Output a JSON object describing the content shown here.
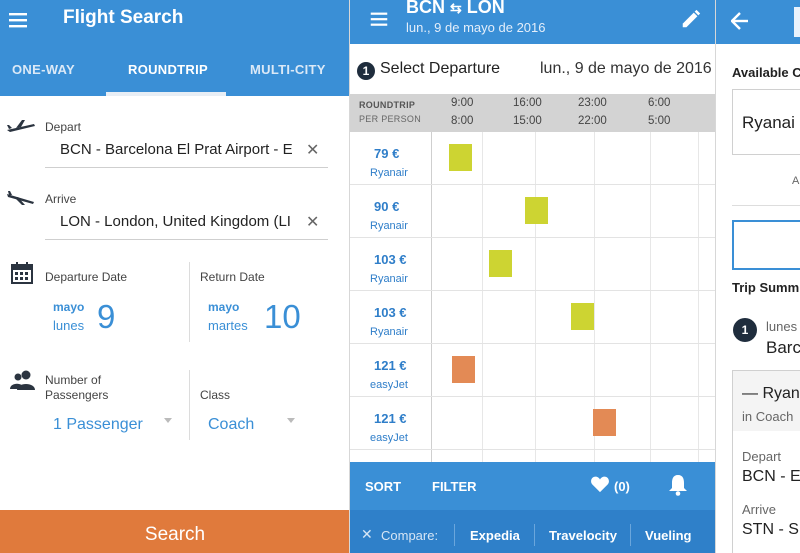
{
  "search": {
    "title": "Flight Search",
    "tabs": [
      {
        "label": "ONE-WAY"
      },
      {
        "label": "ROUNDTRIP"
      },
      {
        "label": "MULTI-CITY"
      }
    ],
    "active_tab": "ROUNDTRIP",
    "depart": {
      "label": "Depart",
      "value": "BCN - Barcelona El Prat Airport - E"
    },
    "arrive": {
      "label": "Arrive",
      "value": "LON - London, United Kingdom (LI"
    },
    "departure_date": {
      "label": "Departure Date",
      "month": "mayo",
      "weekday": "lunes",
      "day": "9"
    },
    "return_date": {
      "label": "Return Date",
      "month": "mayo",
      "weekday": "martes",
      "day": "10"
    },
    "passengers": {
      "label_line1": "Number of",
      "label_line2": "Passengers",
      "value": "1 Passenger"
    },
    "class": {
      "label": "Class",
      "value": "Coach"
    },
    "search_button": "Search"
  },
  "results": {
    "route_from": "BCN",
    "route_to": "LON",
    "route_separator": "⇆",
    "subtitle": "lun., 9 de mayo de 2016",
    "step": "1",
    "select_label": "Select Departure",
    "select_date": "lun., 9 de mayo de 2016",
    "grid_header": {
      "line1": "ROUNDTRIP",
      "line2": "PER PERSON",
      "columns": [
        {
          "top": "9:00",
          "bottom": "8:00"
        },
        {
          "top": "16:00",
          "bottom": "15:00"
        },
        {
          "top": "23:00",
          "bottom": "22:00"
        },
        {
          "top": "6:00",
          "bottom": "5:00"
        }
      ]
    },
    "rows": [
      {
        "price": "79 €",
        "airline": "Ryanair",
        "slot": 0.06,
        "color": "#cdd432"
      },
      {
        "price": "90 €",
        "airline": "Ryanair",
        "slot": 0.33,
        "color": "#cdd432"
      },
      {
        "price": "103 €",
        "airline": "Ryanair",
        "slot": 0.2,
        "color": "#cdd432"
      },
      {
        "price": "103 €",
        "airline": "Ryanair",
        "slot": 0.49,
        "color": "#cdd432"
      },
      {
        "price": "121 €",
        "airline": "easyJet",
        "slot": 0.07,
        "color": "#e38a55"
      },
      {
        "price": "121 €",
        "airline": "easyJet",
        "slot": 0.57,
        "color": "#e38a55"
      }
    ],
    "actions": {
      "sort": "SORT",
      "filter": "FILTER",
      "favorites_count": "(0)"
    },
    "compare": {
      "label": "Compare:",
      "items": [
        "Expedia",
        "Travelocity",
        "Vueling"
      ]
    }
  },
  "summary": {
    "available": "Available C",
    "card_airline": "Ryanai",
    "small_text": "A",
    "trip_summary": "Trip Summ",
    "step": "1",
    "step_day": "lunes",
    "step_city": "Barc",
    "flight_airline": "— Ryan",
    "flight_class": "in Coach",
    "depart_label": "Depart",
    "depart_value": "BCN - E",
    "arrive_label": "Arrive",
    "arrive_value": "STN - S"
  },
  "colors": {
    "primary": "#3a8fd6",
    "search_button": "#e07a3c",
    "ryanair_slot": "#cdd432",
    "easyjet_slot": "#e38a55",
    "step_badge": "#1f2d3d"
  }
}
